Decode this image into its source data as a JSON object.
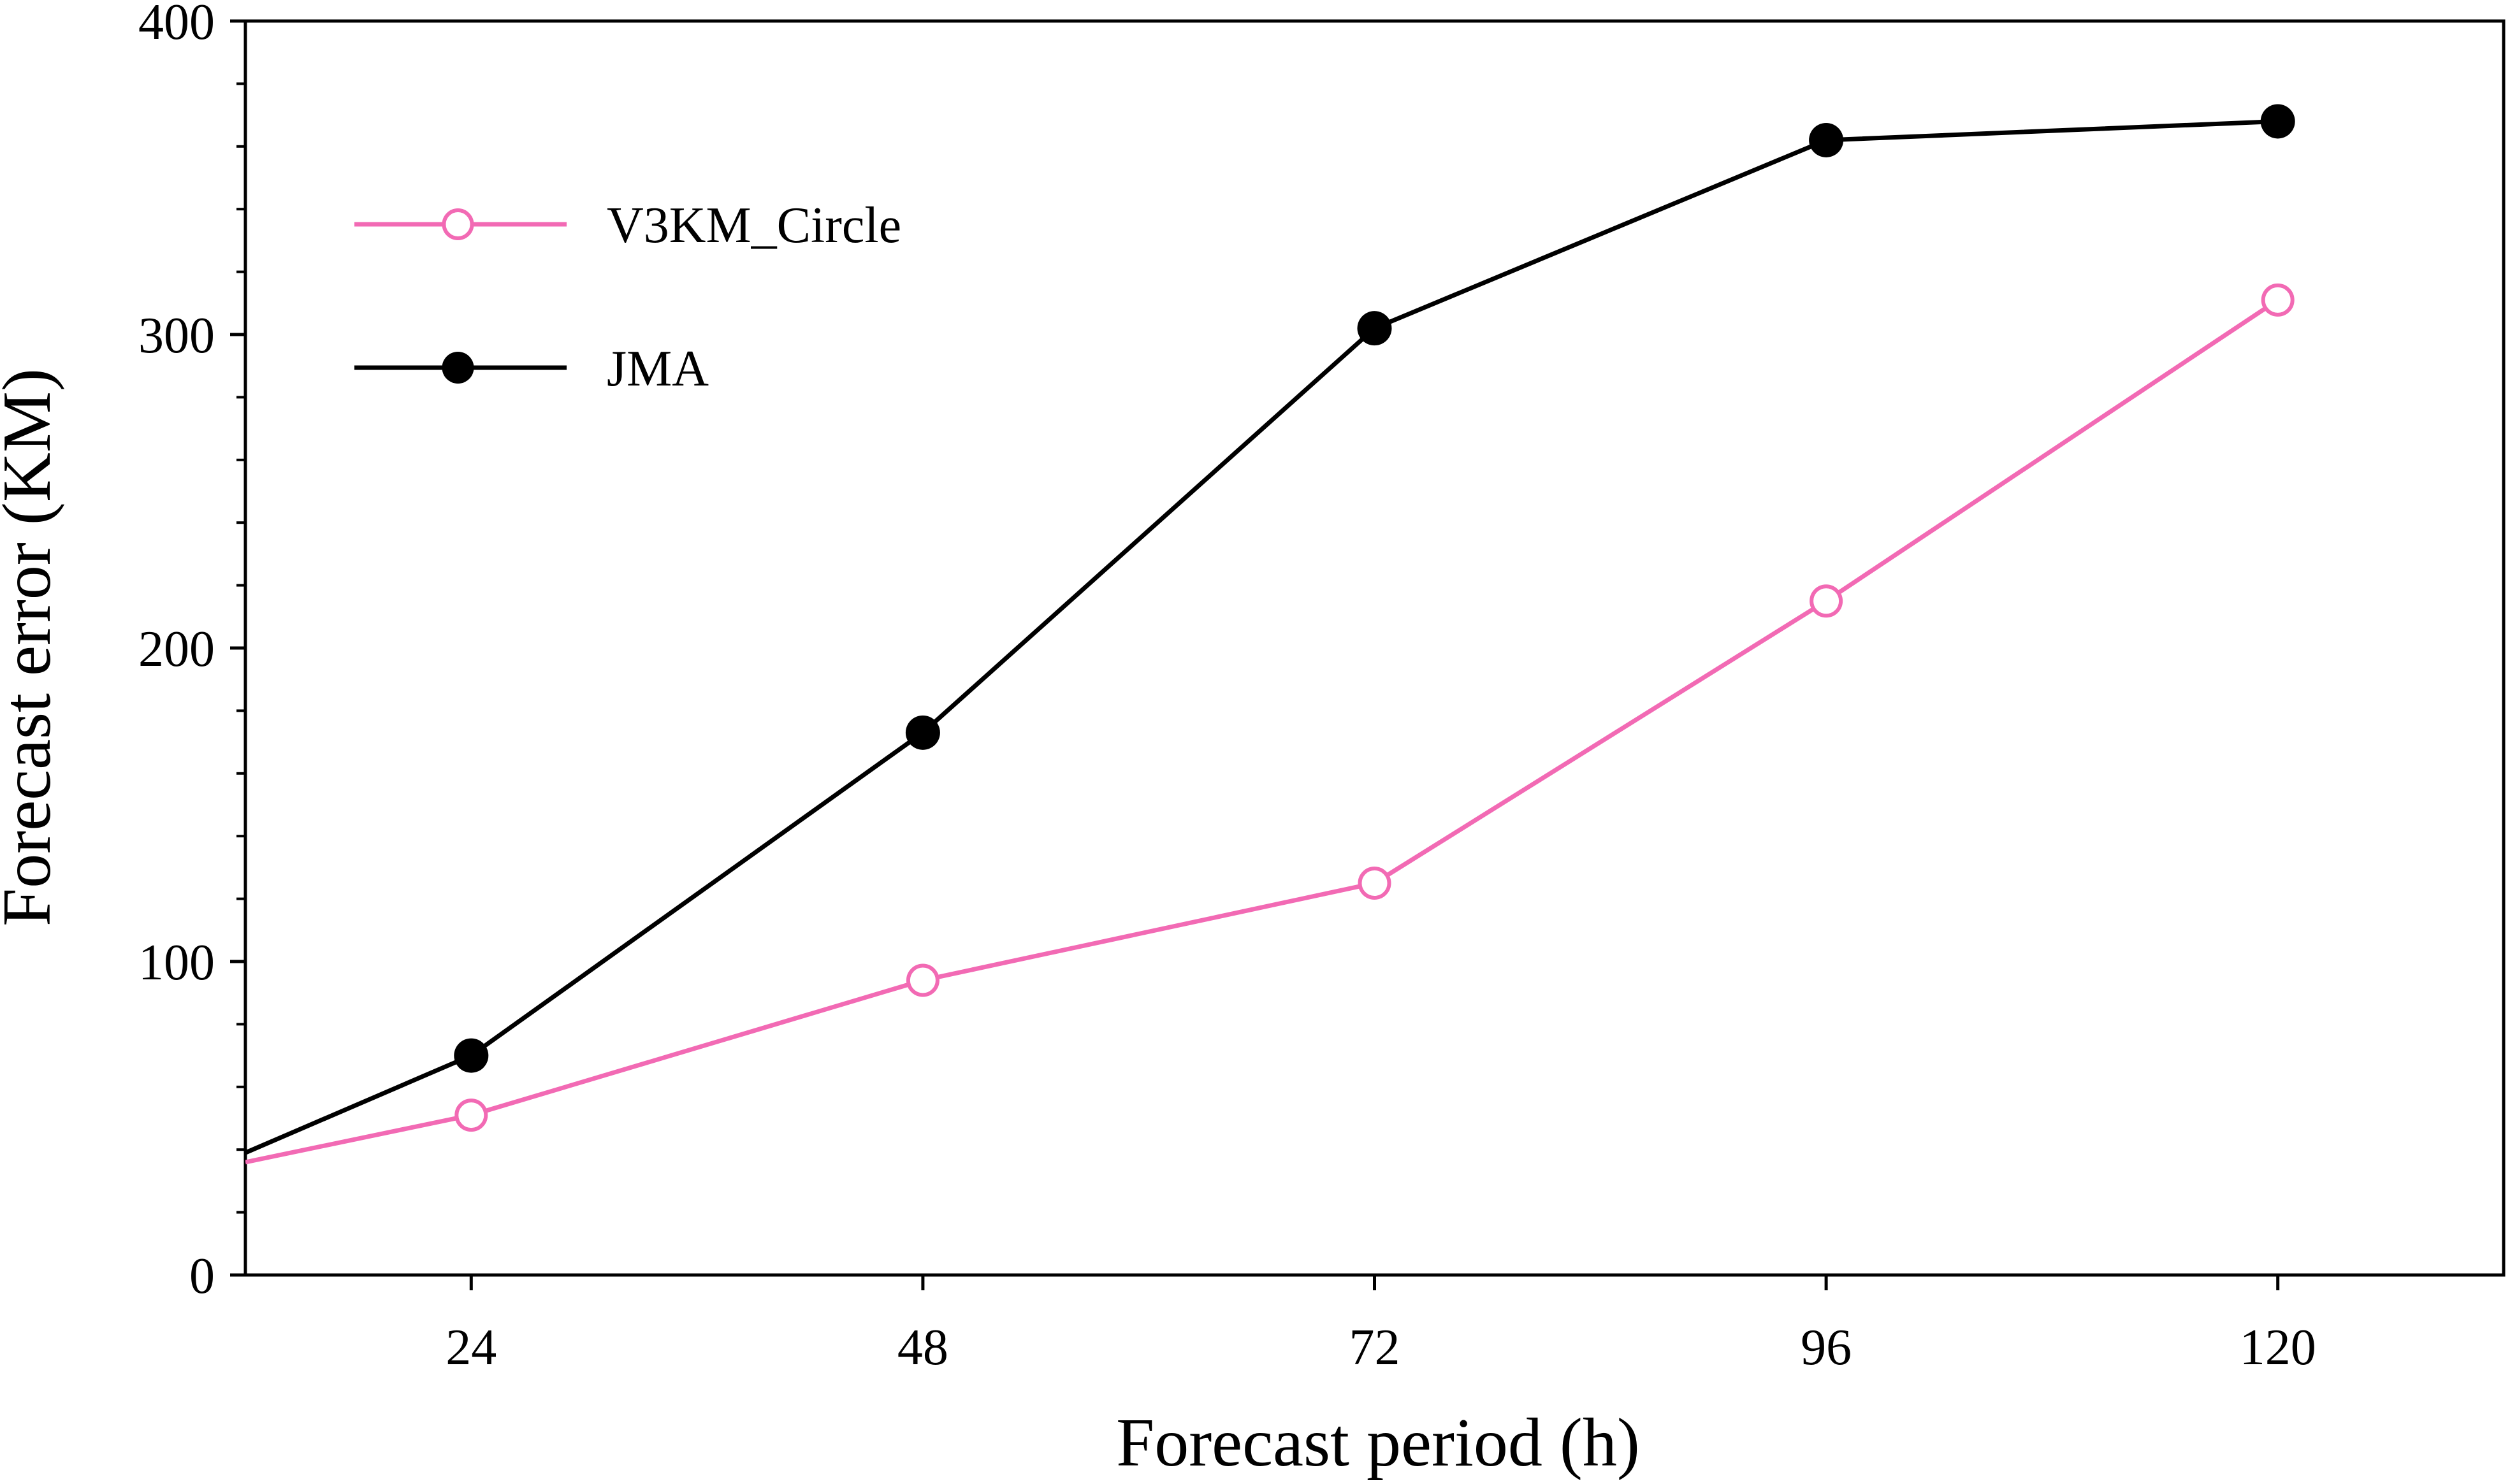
{
  "chart_data": {
    "type": "line",
    "title": "",
    "xlabel": "Forecast period (h)",
    "ylabel": "Forecast error (KM)",
    "xlim": [
      12,
      132
    ],
    "ylim": [
      0,
      400
    ],
    "xticks": [
      24,
      48,
      72,
      96,
      120
    ],
    "xtick_labels": [
      "24",
      "48",
      "72",
      "96",
      "120"
    ],
    "yticks": [
      0,
      100,
      200,
      300,
      400
    ],
    "ytick_labels": [
      "0",
      "100",
      "200",
      "300",
      "400"
    ],
    "y_minor_step": 20,
    "grid": false,
    "legend_position": "top-left",
    "series": [
      {
        "name": "V3KM_Circle",
        "color": "#f26ab4",
        "marker": "open-circle",
        "line_start": [
          12,
          36
        ],
        "x": [
          24,
          48,
          72,
          96,
          120
        ],
        "y": [
          51,
          94,
          125,
          215,
          311
        ]
      },
      {
        "name": "JMA",
        "color": "#000000",
        "marker": "filled-circle",
        "line_start": [
          12,
          39
        ],
        "x": [
          24,
          48,
          72,
          96,
          120
        ],
        "y": [
          70,
          173,
          302,
          362,
          368
        ]
      }
    ]
  }
}
